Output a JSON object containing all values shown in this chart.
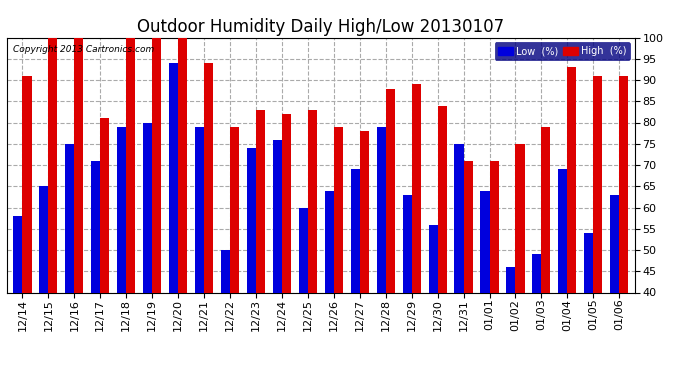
{
  "title": "Outdoor Humidity Daily High/Low 20130107",
  "copyright": "Copyright 2013 Cartronics.com",
  "categories": [
    "12/14",
    "12/15",
    "12/16",
    "12/17",
    "12/18",
    "12/19",
    "12/20",
    "12/21",
    "12/22",
    "12/23",
    "12/24",
    "12/25",
    "12/26",
    "12/27",
    "12/28",
    "12/29",
    "12/30",
    "12/31",
    "01/01",
    "01/02",
    "01/03",
    "01/04",
    "01/05",
    "01/06"
  ],
  "low_values": [
    58,
    65,
    75,
    71,
    79,
    80,
    94,
    79,
    50,
    74,
    76,
    60,
    64,
    69,
    79,
    63,
    56,
    75,
    64,
    46,
    49,
    69,
    54,
    63
  ],
  "high_values": [
    91,
    100,
    100,
    81,
    100,
    100,
    100,
    94,
    79,
    83,
    82,
    83,
    79,
    78,
    88,
    89,
    84,
    71,
    71,
    75,
    79,
    93,
    91,
    91
  ],
  "low_color": "#0000dd",
  "high_color": "#dd0000",
  "bg_color": "#ffffff",
  "grid_color": "#aaaaaa",
  "ylim": [
    40,
    100
  ],
  "yticks": [
    40,
    45,
    50,
    55,
    60,
    65,
    70,
    75,
    80,
    85,
    90,
    95,
    100
  ],
  "title_fontsize": 12,
  "tick_fontsize": 8,
  "legend_low_label": "Low  (%)",
  "legend_high_label": "High  (%)",
  "bar_width": 0.35
}
